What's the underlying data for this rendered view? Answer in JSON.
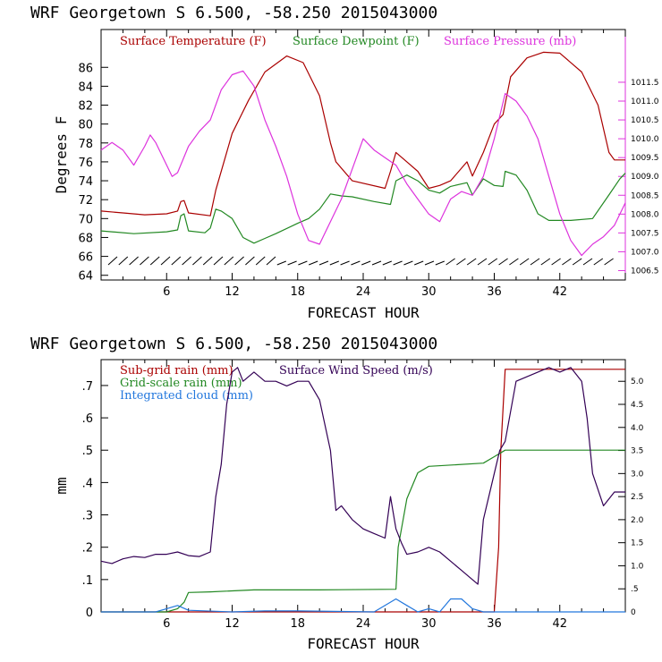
{
  "chart_data": [
    {
      "type": "line",
      "title": "WRF   Georgetown S   6.500, -58.250  2015043000",
      "xlabel": "FORECAST HOUR",
      "ylabel": "Degrees F",
      "xlim": [
        0,
        48
      ],
      "ylim": [
        63.5,
        90
      ],
      "y2lim": [
        1006.25,
        1012.9
      ],
      "xticks": [
        "6",
        "12",
        "18",
        "24",
        "30",
        "36",
        "42"
      ],
      "yticks": [
        "64",
        "66",
        "68",
        "70",
        "72",
        "74",
        "76",
        "78",
        "80",
        "82",
        "84",
        "86"
      ],
      "y2ticks": [
        "1006.5",
        "1007.0",
        "1007.5",
        "1008.0",
        "1008.5",
        "1009.0",
        "1009.5",
        "1010.0",
        "1010.5",
        "1011.0",
        "1011.5"
      ],
      "legend_position": "top",
      "series": [
        {
          "name": "Surface Temperature (F)",
          "color": "#aa0000",
          "axis": "left",
          "points": [
            [
              0,
              70.8
            ],
            [
              2,
              70.6
            ],
            [
              4,
              70.4
            ],
            [
              6,
              70.5
            ],
            [
              7,
              70.8
            ],
            [
              7.3,
              71.8
            ],
            [
              7.6,
              71.9
            ],
            [
              8,
              70.6
            ],
            [
              10,
              70.3
            ],
            [
              10.5,
              73
            ],
            [
              12,
              79
            ],
            [
              13.5,
              82.5
            ],
            [
              15,
              85.5
            ],
            [
              17,
              87.2
            ],
            [
              18.5,
              86.5
            ],
            [
              20,
              83
            ],
            [
              21,
              78
            ],
            [
              21.5,
              76
            ],
            [
              23,
              74
            ],
            [
              26,
              73.2
            ],
            [
              26.5,
              75
            ],
            [
              27,
              77
            ],
            [
              28,
              76
            ],
            [
              29,
              75
            ],
            [
              30,
              73.2
            ],
            [
              31,
              73.5
            ],
            [
              32,
              74
            ],
            [
              33.5,
              76
            ],
            [
              34,
              74.5
            ],
            [
              35,
              77
            ],
            [
              36,
              80
            ],
            [
              36.8,
              81
            ],
            [
              37.5,
              85
            ],
            [
              39,
              87
            ],
            [
              40.5,
              87.6
            ],
            [
              42,
              87.5
            ],
            [
              44,
              85.5
            ],
            [
              45.5,
              82
            ],
            [
              46.5,
              77
            ],
            [
              47,
              76.2
            ],
            [
              48,
              76.2
            ]
          ]
        },
        {
          "name": "Surface Dewpoint (F)",
          "color": "#228822",
          "axis": "left",
          "points": [
            [
              0,
              68.7
            ],
            [
              3,
              68.4
            ],
            [
              6,
              68.6
            ],
            [
              7,
              68.8
            ],
            [
              7.3,
              70.3
            ],
            [
              7.6,
              70.5
            ],
            [
              8,
              68.7
            ],
            [
              9.5,
              68.5
            ],
            [
              10,
              69
            ],
            [
              10.5,
              71
            ],
            [
              11,
              70.8
            ],
            [
              12,
              70
            ],
            [
              13,
              68
            ],
            [
              14,
              67.4
            ],
            [
              15,
              67.9
            ],
            [
              16,
              68.4
            ],
            [
              18,
              69.5
            ],
            [
              19,
              70
            ],
            [
              20,
              71
            ],
            [
              21,
              72.6
            ],
            [
              22,
              72.4
            ],
            [
              23,
              72.3
            ],
            [
              25,
              71.8
            ],
            [
              26.5,
              71.5
            ],
            [
              27,
              74
            ],
            [
              28,
              74.6
            ],
            [
              29,
              74
            ],
            [
              30,
              73
            ],
            [
              31,
              72.7
            ],
            [
              32,
              73.4
            ],
            [
              33.5,
              73.8
            ],
            [
              34,
              72.5
            ],
            [
              35,
              74.2
            ],
            [
              36,
              73.5
            ],
            [
              36.8,
              73.4
            ],
            [
              37,
              75
            ],
            [
              38,
              74.6
            ],
            [
              39,
              73
            ],
            [
              40,
              70.5
            ],
            [
              41,
              69.8
            ],
            [
              43,
              69.8
            ],
            [
              45,
              70
            ],
            [
              46.5,
              72.5
            ],
            [
              47.5,
              74.2
            ],
            [
              48,
              74.8
            ]
          ]
        },
        {
          "name": "Surface Pressure (mb)",
          "color": "#dd33dd",
          "axis": "right",
          "points": [
            [
              0,
              1009.7
            ],
            [
              1,
              1009.9
            ],
            [
              2,
              1009.7
            ],
            [
              3,
              1009.3
            ],
            [
              4,
              1009.8
            ],
            [
              4.5,
              1010.1
            ],
            [
              5,
              1009.9
            ],
            [
              6,
              1009.3
            ],
            [
              6.5,
              1009.0
            ],
            [
              7,
              1009.1
            ],
            [
              8,
              1009.8
            ],
            [
              9,
              1010.2
            ],
            [
              10,
              1010.5
            ],
            [
              11,
              1011.3
            ],
            [
              12,
              1011.7
            ],
            [
              13,
              1011.8
            ],
            [
              14,
              1011.4
            ],
            [
              15,
              1010.5
            ],
            [
              16,
              1009.8
            ],
            [
              17,
              1009.0
            ],
            [
              18,
              1008.0
            ],
            [
              19,
              1007.3
            ],
            [
              20,
              1007.2
            ],
            [
              21,
              1007.8
            ],
            [
              22,
              1008.4
            ],
            [
              23,
              1009.2
            ],
            [
              24,
              1010.0
            ],
            [
              25,
              1009.7
            ],
            [
              26,
              1009.5
            ],
            [
              27,
              1009.3
            ],
            [
              28,
              1008.8
            ],
            [
              29,
              1008.4
            ],
            [
              30,
              1008.0
            ],
            [
              31,
              1007.8
            ],
            [
              32,
              1008.4
            ],
            [
              33,
              1008.6
            ],
            [
              34,
              1008.5
            ],
            [
              35,
              1009.0
            ],
            [
              36,
              1010.0
            ],
            [
              37,
              1011.2
            ],
            [
              38,
              1011.0
            ],
            [
              39,
              1010.6
            ],
            [
              40,
              1010.0
            ],
            [
              41,
              1009.0
            ],
            [
              42,
              1008.0
            ],
            [
              43,
              1007.3
            ],
            [
              44,
              1006.9
            ],
            [
              45,
              1007.2
            ],
            [
              46,
              1007.4
            ],
            [
              47,
              1007.7
            ],
            [
              48,
              1008.3
            ]
          ]
        }
      ]
    },
    {
      "type": "line",
      "title": "WRF   Georgetown S   6.500, -58.250  2015043000",
      "xlabel": "FORECAST HOUR",
      "ylabel": "mm",
      "xlim": [
        0,
        48
      ],
      "ylim": [
        0,
        0.78
      ],
      "y2lim": [
        0,
        5.47
      ],
      "xticks": [
        "6",
        "12",
        "18",
        "24",
        "30",
        "36",
        "42"
      ],
      "yticks": [
        "0",
        ".1",
        ".2",
        ".3",
        ".4",
        ".5",
        ".6",
        ".7"
      ],
      "y2ticks": [
        "0",
        ".5",
        "1.0",
        "1.5",
        "2.0",
        "2.5",
        "3.0",
        "3.5",
        "4.0",
        "4.5",
        "5.0"
      ],
      "legend_position": "top-left",
      "series": [
        {
          "name": "Sub-grid rain (mm)",
          "color": "#aa0000",
          "axis": "left",
          "points": [
            [
              0,
              0
            ],
            [
              36,
              0
            ],
            [
              36.4,
              0.2
            ],
            [
              36.6,
              0.5
            ],
            [
              37,
              0.75
            ],
            [
              48,
              0.75
            ]
          ]
        },
        {
          "name": "Grid-scale rain (mm)",
          "color": "#228822",
          "axis": "left",
          "points": [
            [
              0,
              0
            ],
            [
              6,
              0
            ],
            [
              7,
              0.01
            ],
            [
              7.6,
              0.03
            ],
            [
              8,
              0.06
            ],
            [
              10,
              0.062
            ],
            [
              14,
              0.068
            ],
            [
              20,
              0.068
            ],
            [
              27,
              0.07
            ],
            [
              27.2,
              0.2
            ],
            [
              28,
              0.35
            ],
            [
              29,
              0.43
            ],
            [
              30,
              0.45
            ],
            [
              35,
              0.46
            ],
            [
              36,
              0.48
            ],
            [
              37,
              0.5
            ],
            [
              48,
              0.5
            ]
          ]
        },
        {
          "name": "Integrated cloud (mm)",
          "color": "#2277dd",
          "axis": "left",
          "points": [
            [
              0,
              0
            ],
            [
              5,
              0
            ],
            [
              6,
              0.01
            ],
            [
              7,
              0.02
            ],
            [
              8,
              0.005
            ],
            [
              12,
              0
            ],
            [
              15,
              0.003
            ],
            [
              18,
              0.003
            ],
            [
              25,
              0
            ],
            [
              27,
              0.04
            ],
            [
              28,
              0.02
            ],
            [
              29,
              0
            ],
            [
              30,
              0.01
            ],
            [
              31,
              0
            ],
            [
              32,
              0.04
            ],
            [
              33,
              0.04
            ],
            [
              34,
              0.01
            ],
            [
              35,
              0
            ],
            [
              48,
              0
            ]
          ]
        },
        {
          "name": "Surface Wind Speed (m/s)",
          "color": "#330055",
          "axis": "right",
          "points": [
            [
              0,
              1.1
            ],
            [
              1,
              1.05
            ],
            [
              2,
              1.15
            ],
            [
              3,
              1.2
            ],
            [
              4,
              1.18
            ],
            [
              5,
              1.25
            ],
            [
              6,
              1.25
            ],
            [
              7,
              1.3
            ],
            [
              8,
              1.22
            ],
            [
              9,
              1.2
            ],
            [
              10,
              1.3
            ],
            [
              10.5,
              2.5
            ],
            [
              11,
              3.2
            ],
            [
              11.5,
              4.5
            ],
            [
              12,
              5.2
            ],
            [
              12.5,
              5.3
            ],
            [
              13,
              5.0
            ],
            [
              14,
              5.2
            ],
            [
              15,
              5.0
            ],
            [
              16,
              5.0
            ],
            [
              17,
              4.9
            ],
            [
              18,
              5.0
            ],
            [
              19,
              5.0
            ],
            [
              20,
              4.6
            ],
            [
              21,
              3.5
            ],
            [
              21.5,
              2.2
            ],
            [
              22,
              2.3
            ],
            [
              23,
              2.0
            ],
            [
              24,
              1.8
            ],
            [
              25,
              1.7
            ],
            [
              26,
              1.6
            ],
            [
              26.5,
              2.5
            ],
            [
              27,
              1.8
            ],
            [
              27.5,
              1.5
            ],
            [
              28,
              1.25
            ],
            [
              29,
              1.3
            ],
            [
              30,
              1.4
            ],
            [
              31,
              1.3
            ],
            [
              32,
              1.1
            ],
            [
              33,
              0.9
            ],
            [
              34,
              0.7
            ],
            [
              34.5,
              0.6
            ],
            [
              35,
              2.0
            ],
            [
              36,
              3.0
            ],
            [
              36.5,
              3.5
            ],
            [
              37,
              3.7
            ],
            [
              38,
              5.0
            ],
            [
              39,
              5.1
            ],
            [
              40,
              5.2
            ],
            [
              41,
              5.3
            ],
            [
              42,
              5.2
            ],
            [
              43,
              5.3
            ],
            [
              44,
              5.0
            ],
            [
              44.5,
              4.2
            ],
            [
              45,
              3.0
            ],
            [
              46,
              2.3
            ],
            [
              47,
              2.6
            ],
            [
              48,
              2.6
            ]
          ]
        }
      ]
    }
  ]
}
